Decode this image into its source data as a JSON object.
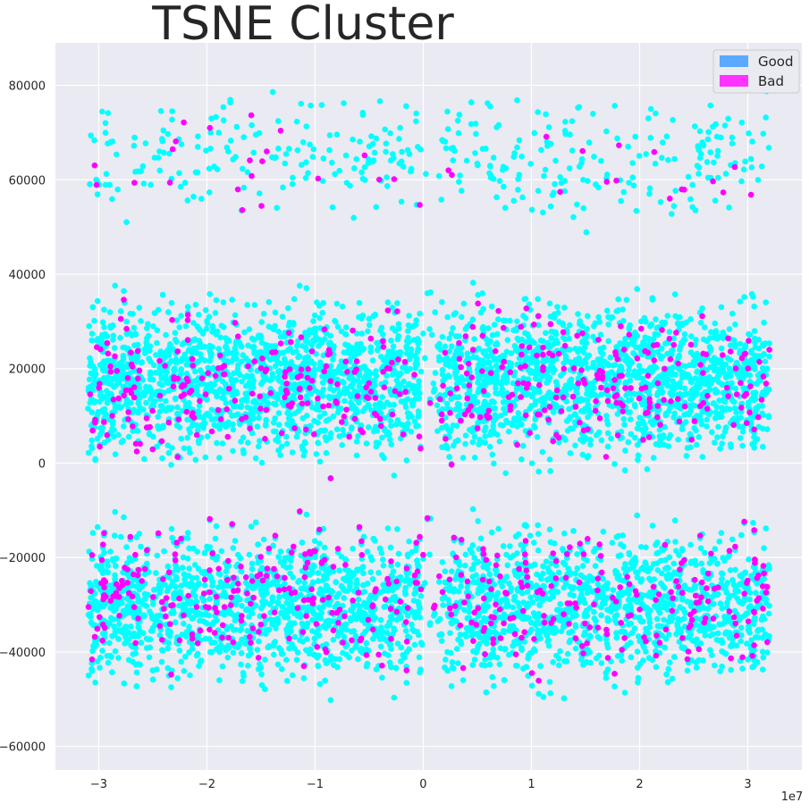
{
  "chart_data": {
    "type": "scatter",
    "title": "TSNE Cluster",
    "xlabel": "",
    "ylabel": "",
    "x_offset_label": "1e7",
    "xlim": [
      -3.4,
      3.5
    ],
    "ylim": [
      -65000,
      89000
    ],
    "x_ticks": [
      -3,
      -2,
      -1,
      0,
      1,
      2,
      3
    ],
    "x_tick_labels": [
      "−3",
      "−2",
      "−1",
      "0",
      "1",
      "2",
      "3"
    ],
    "y_ticks": [
      -60000,
      -40000,
      -20000,
      0,
      20000,
      40000,
      60000,
      80000
    ],
    "y_tick_labels": [
      "−60000",
      "−40000",
      "−20000",
      "0",
      "20000",
      "40000",
      "60000",
      "80000"
    ],
    "grid": true,
    "legend_position": "top-right",
    "legend": [
      {
        "label": "Good",
        "color": "#5aa8ff"
      },
      {
        "label": "Bad",
        "color": "#ff33ff"
      }
    ],
    "series": [
      {
        "name": "Good",
        "color": "#00ffff",
        "x_min": -3.1,
        "x_max": 3.2,
        "clusters": [
          {
            "y_min": 48000,
            "y_max": 82000,
            "density": "sparse"
          },
          {
            "y_min": -5000,
            "y_max": 40000,
            "density": "dense"
          },
          {
            "y_min": -52000,
            "y_max": -8000,
            "density": "dense"
          }
        ]
      },
      {
        "name": "Bad",
        "color": "#ff00ff",
        "x_min": -3.1,
        "x_max": 3.2,
        "clusters": [
          {
            "y_min": 50000,
            "y_max": 77000,
            "density": "sparse"
          },
          {
            "y_min": -5000,
            "y_max": 38000,
            "density": "medium"
          },
          {
            "y_min": -49000,
            "y_max": -8000,
            "density": "medium"
          }
        ]
      }
    ]
  }
}
